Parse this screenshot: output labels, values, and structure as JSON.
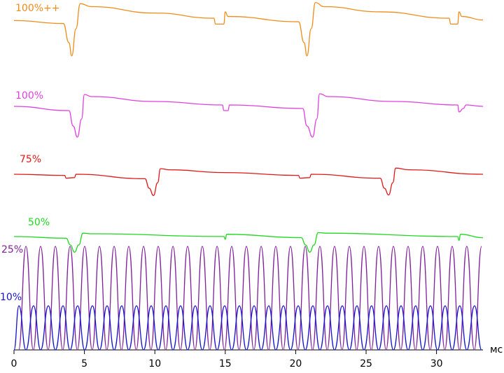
{
  "chart_data": [
    {
      "type": "line",
      "xlim": [
        0,
        33.3
      ],
      "ylim": [
        0,
        100
      ],
      "x": [
        0,
        3.5,
        3.9,
        4.1,
        4.4,
        4.7,
        5.5,
        10,
        14.2,
        14.3,
        14.9,
        15.0,
        15.2,
        20.2,
        20.6,
        20.8,
        21.1,
        21.4,
        22,
        26,
        30.9,
        31.0,
        31.5,
        31.6,
        31.8,
        33.3
      ],
      "series": [
        {
          "name": "100%++",
          "color": "#f08c1a",
          "values": [
            67,
            62,
            29,
            6,
            53,
            96,
            91,
            80,
            71,
            61,
            61,
            82,
            74,
            65,
            29,
            6,
            53,
            98,
            91,
            82,
            71,
            61,
            61,
            82,
            74,
            68
          ]
        }
      ]
    },
    {
      "type": "line",
      "xlim": [
        0,
        33.3
      ],
      "ylim": [
        0,
        100
      ],
      "x": [
        0,
        3.9,
        4.2,
        4.5,
        4.8,
        5.0,
        5.5,
        10,
        14.8,
        14.9,
        15.2,
        15.3,
        20.5,
        20.8,
        21.2,
        21.5,
        21.7,
        22.3,
        27,
        31.5,
        31.6,
        31.9,
        32.1,
        33.3
      ],
      "series": [
        {
          "name": "100%",
          "color": "#e040e0",
          "values": [
            48,
            42,
            20,
            4,
            30,
            65,
            62,
            55,
            50,
            42,
            42,
            50,
            45,
            20,
            4,
            30,
            66,
            62,
            55,
            50,
            40,
            45,
            50,
            48
          ]
        }
      ]
    },
    {
      "type": "line",
      "xlim": [
        0,
        33.3
      ],
      "ylim": [
        0,
        100
      ],
      "x": [
        0,
        3.6,
        3.7,
        4.3,
        4.4,
        9.3,
        9.6,
        9.9,
        10.2,
        10.4,
        11,
        15,
        20.2,
        20.3,
        21,
        21.1,
        26,
        26.3,
        26.6,
        26.9,
        27.1,
        28,
        33.3
      ],
      "series": [
        {
          "name": "75%",
          "color": "#e01818",
          "values": [
            45,
            43,
            38,
            39,
            45,
            37,
            20,
            7,
            30,
            55,
            53,
            48,
            43,
            38,
            39,
            45,
            38,
            20,
            8,
            30,
            56,
            53,
            45
          ]
        }
      ]
    },
    {
      "type": "line",
      "xlim": [
        0,
        33.3
      ],
      "ylim": [
        0,
        100
      ],
      "x": [
        0,
        3.7,
        4.0,
        4.3,
        4.6,
        4.9,
        5.5,
        14.9,
        15,
        15.1,
        20.4,
        20.7,
        21,
        21.3,
        21.6,
        22.2,
        31.5,
        31.6,
        31.7,
        33.3
      ],
      "series": [
        {
          "name": "50%",
          "color": "#20d820",
          "values": [
            40,
            37,
            25,
            12,
            25,
            46,
            45,
            40,
            35,
            44,
            38,
            25,
            12,
            25,
            47,
            46,
            40,
            33,
            44,
            38
          ]
        }
      ]
    },
    {
      "type": "line",
      "xlim": [
        0,
        33.3
      ],
      "ylim": [
        0,
        155
      ],
      "xticks": [
        0,
        5,
        10,
        15,
        20,
        25,
        30
      ],
      "x_label": "мс",
      "series": [
        {
          "name": "25%",
          "color": "#80209a",
          "x": [
            0.33,
            0.85,
            1.37,
            1.89,
            2.42,
            2.94,
            3.46,
            3.98,
            4.5,
            5.02,
            5.55,
            6.07,
            6.59,
            7.11,
            7.63,
            8.15,
            8.68,
            9.2,
            9.72,
            10.24,
            10.77,
            11.29,
            11.81,
            12.33,
            12.85,
            13.37,
            13.9,
            14.42,
            14.94,
            15.46,
            15.98,
            16.5,
            17.03,
            17.55,
            18.07,
            18.59,
            19.11,
            19.63,
            20.16,
            20.68,
            21.2,
            21.72,
            22.24,
            22.76,
            23.29,
            23.81,
            24.33,
            24.85,
            25.37,
            25.89,
            26.42,
            26.94,
            27.46,
            27.98,
            28.5,
            29.02,
            29.55,
            30.07,
            30.59,
            31.11,
            31.63,
            32.15,
            32.68,
            33.2
          ],
          "values": [
            0,
            148,
            0,
            148,
            0,
            148,
            0,
            148,
            0,
            148,
            0,
            148,
            0,
            148,
            0,
            148,
            0,
            148,
            0,
            148,
            0,
            148,
            0,
            148,
            0,
            148,
            0,
            148,
            0,
            148,
            0,
            148,
            0,
            148,
            0,
            148,
            0,
            148,
            0,
            148,
            0,
            148,
            0,
            148,
            0,
            148,
            0,
            148,
            0,
            148,
            0,
            148,
            0,
            148,
            0,
            148,
            0,
            148,
            0,
            148,
            0,
            148,
            0,
            148
          ]
        },
        {
          "name": "10%",
          "color": "#1414d0",
          "x": [
            0,
            0.35,
            0.85,
            1.39,
            1.89,
            2.44,
            2.94,
            3.48,
            3.98,
            4.52,
            5.02,
            5.57,
            6.07,
            6.61,
            7.11,
            7.65,
            8.15,
            8.7,
            9.2,
            9.74,
            10.24,
            10.79,
            11.29,
            11.83,
            12.33,
            12.87,
            13.37,
            13.92,
            14.42,
            14.96,
            15.46,
            16.0,
            16.5,
            17.05,
            17.55,
            18.09,
            18.59,
            19.13,
            19.63,
            20.18,
            20.68,
            21.22,
            21.72,
            22.26,
            22.76,
            23.31,
            23.81,
            24.35,
            24.85,
            25.39,
            25.89,
            26.44,
            26.94,
            27.48,
            27.98,
            28.52,
            29.02,
            29.57,
            30.07,
            30.61,
            31.11,
            31.65,
            32.15,
            32.7,
            33.2
          ],
          "values": [
            0,
            63,
            0,
            63,
            0,
            63,
            0,
            63,
            0,
            63,
            0,
            63,
            0,
            63,
            0,
            63,
            0,
            63,
            0,
            63,
            0,
            63,
            0,
            63,
            0,
            63,
            0,
            63,
            0,
            63,
            0,
            63,
            0,
            63,
            0,
            63,
            0,
            63,
            0,
            63,
            0,
            63,
            0,
            63,
            0,
            63,
            0,
            63,
            0,
            63,
            0,
            63,
            0,
            63,
            0,
            63,
            0,
            63,
            0,
            63,
            0,
            63,
            0,
            63,
            0
          ]
        }
      ]
    }
  ]
}
